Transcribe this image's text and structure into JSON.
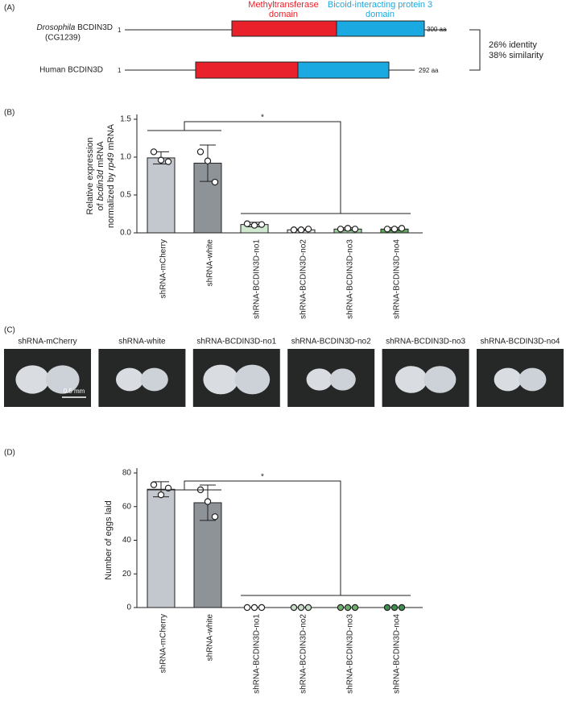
{
  "panel_labels": [
    "(A)",
    "(B)",
    "(C)",
    "(D)"
  ],
  "panel_a": {
    "drosophila": {
      "name_italic": "Drosophila",
      "name": " BCDIN3D",
      "alias": "(CG1239)",
      "start": "1",
      "end": "300 aa"
    },
    "human": {
      "name": "Human BCDIN3D",
      "start": "1",
      "end": "292 aa"
    },
    "domain_1": [
      "Methyltransferase",
      "domain"
    ],
    "domain_2": [
      "Bicoid-interacting protein 3",
      "domain"
    ],
    "identity": "26% identity",
    "similarity": "38% similarity"
  },
  "panel_c": {
    "labels": [
      "shRNA-mCherry",
      "shRNA-white",
      "shRNA-BCDIN3D-no1",
      "shRNA-BCDIN3D-no2",
      "shRNA-BCDIN3D-no3",
      "shRNA-BCDIN3D-no4"
    ],
    "scale_bar": "0.5 mm"
  },
  "chart_data": [
    {
      "type": "bar",
      "ylabel": [
        [
          "Relative expression"
        ],
        [
          "of ",
          "bcdin3d",
          " mRNA"
        ],
        [
          "normalized by ",
          "rp49",
          " mRNA"
        ]
      ],
      "categories": [
        "shRNA-mCherry",
        "shRNA-white",
        "shRNA-BCDIN3D-no1",
        "shRNA-BCDIN3D-no2",
        "shRNA-BCDIN3D-no3",
        "shRNA-BCDIN3D-no4"
      ],
      "values": [
        0.99,
        0.92,
        0.11,
        0.04,
        0.05,
        0.05
      ],
      "errors": [
        0.08,
        0.24,
        0.03,
        0.01,
        0.02,
        0.02
      ],
      "points": [
        [
          1.07,
          0.96,
          0.94
        ],
        [
          1.07,
          0.95,
          0.67
        ],
        [
          0.12,
          0.1,
          0.11
        ],
        [
          0.04,
          0.04,
          0.05
        ],
        [
          0.05,
          0.06,
          0.05
        ],
        [
          0.05,
          0.05,
          0.06
        ]
      ],
      "colors": [
        "#c3c7ce",
        "#8e9398",
        "#cfe8cf",
        "#e6f1e6",
        "#9fcf9f",
        "#5fa65f"
      ],
      "point_colors": [
        "#ffffff",
        "#ffffff",
        "#ffffff",
        "#ffffff",
        "#ffffff",
        "#ffffff"
      ],
      "ylim": [
        0,
        1.5
      ],
      "yticks": [
        {
          "value": 0,
          "label": "0.0"
        },
        0.5,
        {
          "value": 1,
          "label": "1.0"
        },
        1.5
      ],
      "significance": "*"
    },
    {
      "type": "bar",
      "ylabel": [
        [
          "Number of eggs laid"
        ]
      ],
      "categories": [
        "shRNA-mCherry",
        "shRNA-white",
        "shRNA-BCDIN3D-no1",
        "shRNA-BCDIN3D-no2",
        "shRNA-BCDIN3D-no3",
        "shRNA-BCDIN3D-no4"
      ],
      "values": [
        70.3,
        62.3,
        0,
        0,
        0,
        0
      ],
      "errors": [
        4.5,
        10.5,
        null,
        null,
        null,
        null
      ],
      "points": [
        [
          73,
          67,
          71
        ],
        [
          70,
          63,
          54
        ],
        [
          0,
          0,
          0
        ],
        [
          0,
          0,
          0
        ],
        [
          0,
          0,
          0
        ],
        [
          0,
          0,
          0
        ]
      ],
      "colors": [
        "#c3c7ce",
        "#8e9398",
        "#cfe8cf",
        "#e6f1e6",
        "#9fcf9f",
        "#5fa65f"
      ],
      "point_colors": [
        "#ffffff",
        "#ffffff",
        "#ffffff",
        "#c9dfc9",
        "#6fb06f",
        "#3f8f4f"
      ],
      "ylim": [
        0,
        80
      ],
      "yticks": [
        0,
        20,
        40,
        60,
        80
      ],
      "significance": "*"
    }
  ]
}
